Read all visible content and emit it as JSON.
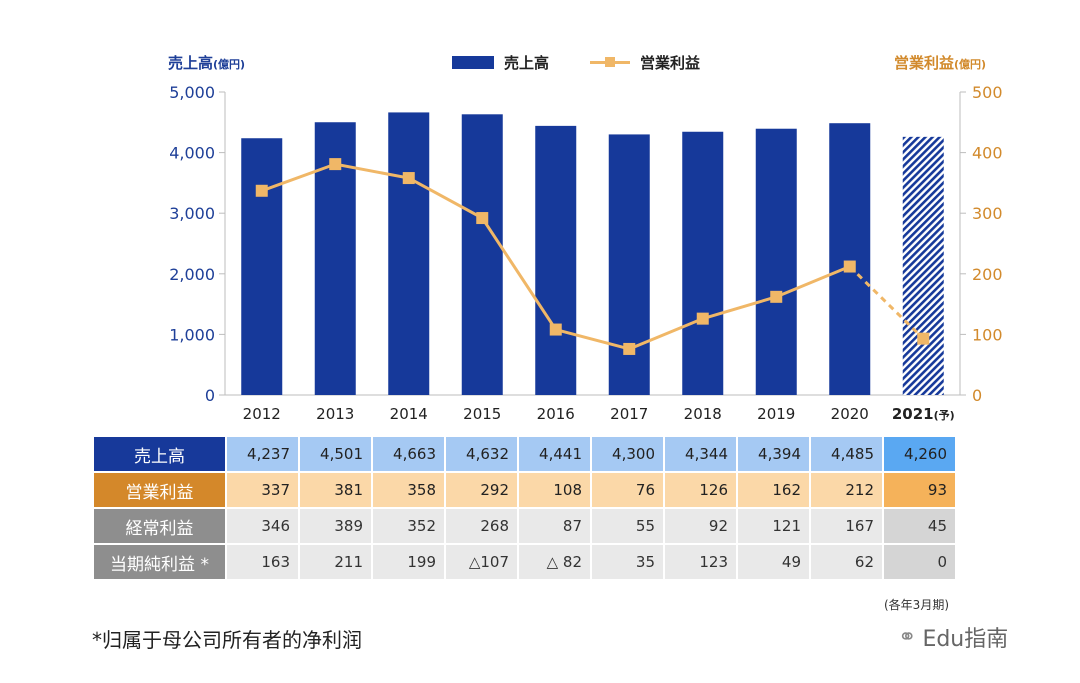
{
  "chart_data": {
    "type": "bar+line",
    "categories": [
      "2012",
      "2013",
      "2014",
      "2015",
      "2016",
      "2017",
      "2018",
      "2019",
      "2020",
      "2021"
    ],
    "forecast_suffix": "(予)",
    "series": [
      {
        "name": "売上高",
        "type": "bar",
        "axis": "left",
        "values": [
          4237,
          4501,
          4663,
          4632,
          4441,
          4300,
          4344,
          4394,
          4485,
          4260
        ]
      },
      {
        "name": "営業利益",
        "type": "line",
        "axis": "right",
        "values": [
          337,
          381,
          358,
          292,
          108,
          76,
          126,
          162,
          212,
          93
        ]
      }
    ],
    "left_axis": {
      "label": "売上高",
      "unit": "(億円)",
      "range": [
        0,
        5000
      ],
      "ticks": [
        "0",
        "1,000",
        "2,000",
        "3,000",
        "4,000",
        "5,000"
      ]
    },
    "right_axis": {
      "label": "営業利益",
      "unit": "(億円)",
      "range": [
        0,
        500
      ],
      "ticks": [
        "0",
        "100",
        "200",
        "300",
        "400",
        "500"
      ]
    },
    "forecast_index": 9
  },
  "legend": {
    "bar_label": "売上高",
    "line_label": "営業利益"
  },
  "table": {
    "rows": [
      {
        "label": "売上高",
        "values": [
          "4,237",
          "4,501",
          "4,663",
          "4,632",
          "4,441",
          "4,300",
          "4,344",
          "4,394",
          "4,485",
          "4,260"
        ]
      },
      {
        "label": "営業利益",
        "values": [
          "337",
          "381",
          "358",
          "292",
          "108",
          "76",
          "126",
          "162",
          "212",
          "93"
        ]
      },
      {
        "label": "経常利益",
        "values": [
          "346",
          "389",
          "352",
          "268",
          "87",
          "55",
          "92",
          "121",
          "167",
          "45"
        ]
      },
      {
        "label": "当期純利益 *",
        "values": [
          "163",
          "211",
          "199",
          "△107",
          "△ 82",
          "35",
          "123",
          "49",
          "62",
          "0"
        ]
      }
    ],
    "period_note": "(各年3月期)"
  },
  "footnote": "*归属于母公司所有者的净利润",
  "watermark": "Edu指南",
  "colors": {
    "bar": "#16399a",
    "line": "#f0b767",
    "left_axis": "#1e3f98",
    "right_axis": "#d28a2c"
  }
}
